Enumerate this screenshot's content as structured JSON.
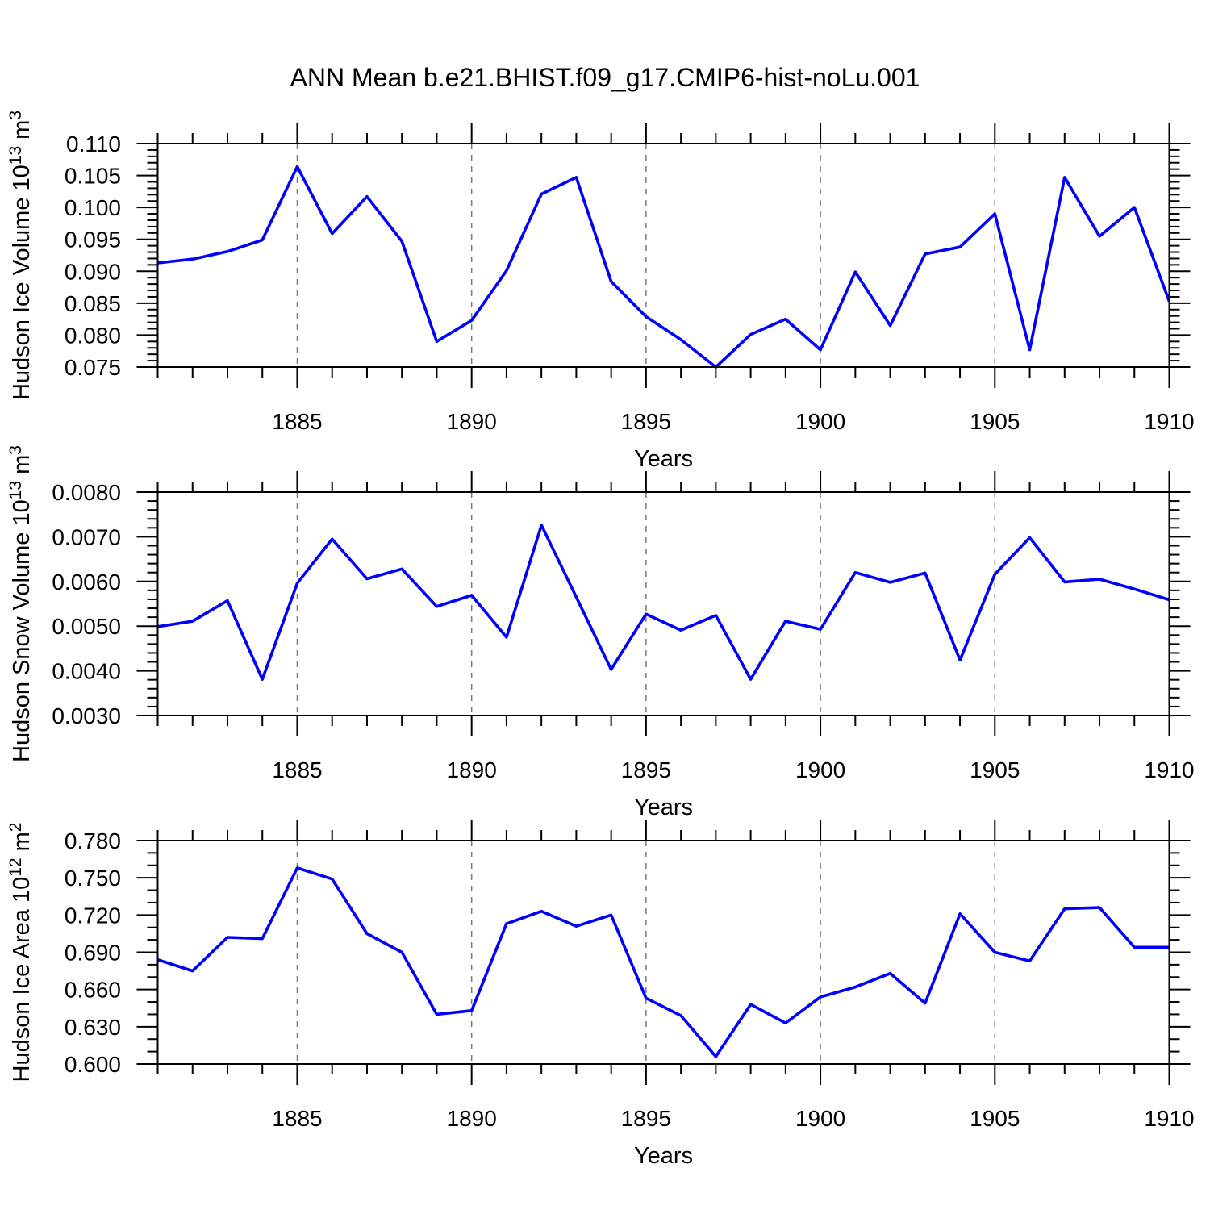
{
  "title": "ANN Mean b.e21.BHIST.f09_g17.CMIP6-hist-noLu.001",
  "line_color": "#0000ff",
  "grid_color": "#7a7a7a",
  "frame_color": "#000000",
  "chart_data": [
    {
      "type": "line",
      "ylabel_segments": [
        {
          "t": "Hudson Ice Volume 10"
        },
        {
          "t": "13",
          "sup": true
        },
        {
          "t": " m"
        },
        {
          "t": "3",
          "sup": true
        }
      ],
      "xlabel": "Years",
      "x": [
        1881,
        1882,
        1883,
        1884,
        1885,
        1886,
        1887,
        1888,
        1889,
        1890,
        1891,
        1892,
        1893,
        1894,
        1895,
        1896,
        1897,
        1898,
        1899,
        1900,
        1901,
        1902,
        1903,
        1904,
        1905,
        1906,
        1907,
        1908,
        1909,
        1910
      ],
      "values": [
        0.0913,
        0.0919,
        0.0931,
        0.0949,
        0.1064,
        0.0959,
        0.1017,
        0.0947,
        0.079,
        0.0823,
        0.0901,
        0.1021,
        0.1047,
        0.0884,
        0.0829,
        0.0793,
        0.075,
        0.0801,
        0.0825,
        0.0777,
        0.0899,
        0.0815,
        0.0927,
        0.0938,
        0.099,
        0.0777,
        0.1047,
        0.0955,
        0.1,
        0.0853
      ],
      "xlim": [
        1881,
        1910
      ],
      "ylim": [
        0.075,
        0.11
      ],
      "yticks": [
        {
          "v": 0.075,
          "label": "0.075"
        },
        {
          "v": 0.08,
          "label": "0.080"
        },
        {
          "v": 0.085,
          "label": "0.085"
        },
        {
          "v": 0.09,
          "label": "0.090"
        },
        {
          "v": 0.095,
          "label": "0.095"
        },
        {
          "v": 0.1,
          "label": "0.100"
        },
        {
          "v": 0.105,
          "label": "0.105"
        },
        {
          "v": 0.11,
          "label": "0.110"
        }
      ],
      "ytick_minor_step": 0.001,
      "xticks": [
        {
          "v": 1885,
          "label": "1885"
        },
        {
          "v": 1890,
          "label": "1890"
        },
        {
          "v": 1895,
          "label": "1895"
        },
        {
          "v": 1900,
          "label": "1900"
        },
        {
          "v": 1905,
          "label": "1905"
        },
        {
          "v": 1910,
          "label": "1910"
        }
      ],
      "xtick_minor_step": 1,
      "grid_x": [
        1885,
        1890,
        1895,
        1900,
        1905
      ]
    },
    {
      "type": "line",
      "ylabel_segments": [
        {
          "t": "Hudson Snow Volume 10"
        },
        {
          "t": "13",
          "sup": true
        },
        {
          "t": " m"
        },
        {
          "t": "3",
          "sup": true
        }
      ],
      "xlabel": "Years",
      "x": [
        1881,
        1882,
        1883,
        1884,
        1885,
        1886,
        1887,
        1888,
        1889,
        1890,
        1891,
        1892,
        1893,
        1894,
        1895,
        1896,
        1897,
        1898,
        1899,
        1900,
        1901,
        1902,
        1903,
        1904,
        1905,
        1906,
        1907,
        1908,
        1909,
        1910
      ],
      "values": [
        0.00499,
        0.00511,
        0.00557,
        0.00381,
        0.00596,
        0.00695,
        0.00606,
        0.00628,
        0.00544,
        0.00569,
        0.00475,
        0.00726,
        0.00565,
        0.00403,
        0.00527,
        0.00491,
        0.00524,
        0.00381,
        0.00511,
        0.00493,
        0.0062,
        0.00598,
        0.00619,
        0.00424,
        0.00616,
        0.00698,
        0.00599,
        0.00605,
        0.00583,
        0.00559
      ],
      "xlim": [
        1881,
        1910
      ],
      "ylim": [
        0.003,
        0.008
      ],
      "yticks": [
        {
          "v": 0.003,
          "label": "0.0030"
        },
        {
          "v": 0.004,
          "label": "0.0040"
        },
        {
          "v": 0.005,
          "label": "0.0050"
        },
        {
          "v": 0.006,
          "label": "0.0060"
        },
        {
          "v": 0.007,
          "label": "0.0070"
        },
        {
          "v": 0.008,
          "label": "0.0080"
        }
      ],
      "ytick_minor_step": 0.0002,
      "xticks": [
        {
          "v": 1885,
          "label": "1885"
        },
        {
          "v": 1890,
          "label": "1890"
        },
        {
          "v": 1895,
          "label": "1895"
        },
        {
          "v": 1900,
          "label": "1900"
        },
        {
          "v": 1905,
          "label": "1905"
        },
        {
          "v": 1910,
          "label": "1910"
        }
      ],
      "xtick_minor_step": 1,
      "grid_x": [
        1885,
        1890,
        1895,
        1900,
        1905
      ]
    },
    {
      "type": "line",
      "ylabel_segments": [
        {
          "t": "Hudson Ice Area 10"
        },
        {
          "t": "12",
          "sup": true
        },
        {
          "t": " m"
        },
        {
          "t": "2",
          "sup": true
        }
      ],
      "xlabel": "Years",
      "x": [
        1881,
        1882,
        1883,
        1884,
        1885,
        1886,
        1887,
        1888,
        1889,
        1890,
        1891,
        1892,
        1893,
        1894,
        1895,
        1896,
        1897,
        1898,
        1899,
        1900,
        1901,
        1902,
        1903,
        1904,
        1905,
        1906,
        1907,
        1908,
        1909,
        1910
      ],
      "values": [
        0.684,
        0.675,
        0.702,
        0.701,
        0.758,
        0.749,
        0.705,
        0.69,
        0.64,
        0.643,
        0.713,
        0.723,
        0.711,
        0.72,
        0.653,
        0.639,
        0.606,
        0.648,
        0.633,
        0.654,
        0.662,
        0.673,
        0.649,
        0.721,
        0.69,
        0.683,
        0.725,
        0.726,
        0.694,
        0.694
      ],
      "xlim": [
        1881,
        1910
      ],
      "ylim": [
        0.6,
        0.78
      ],
      "yticks": [
        {
          "v": 0.6,
          "label": "0.600"
        },
        {
          "v": 0.63,
          "label": "0.630"
        },
        {
          "v": 0.66,
          "label": "0.660"
        },
        {
          "v": 0.69,
          "label": "0.690"
        },
        {
          "v": 0.72,
          "label": "0.720"
        },
        {
          "v": 0.75,
          "label": "0.750"
        },
        {
          "v": 0.78,
          "label": "0.780"
        }
      ],
      "ytick_minor_step": 0.01,
      "xticks": [
        {
          "v": 1885,
          "label": "1885"
        },
        {
          "v": 1890,
          "label": "1890"
        },
        {
          "v": 1895,
          "label": "1895"
        },
        {
          "v": 1900,
          "label": "1900"
        },
        {
          "v": 1905,
          "label": "1905"
        },
        {
          "v": 1910,
          "label": "1910"
        }
      ],
      "xtick_minor_step": 1,
      "grid_x": [
        1885,
        1890,
        1895,
        1900,
        1905
      ]
    }
  ]
}
